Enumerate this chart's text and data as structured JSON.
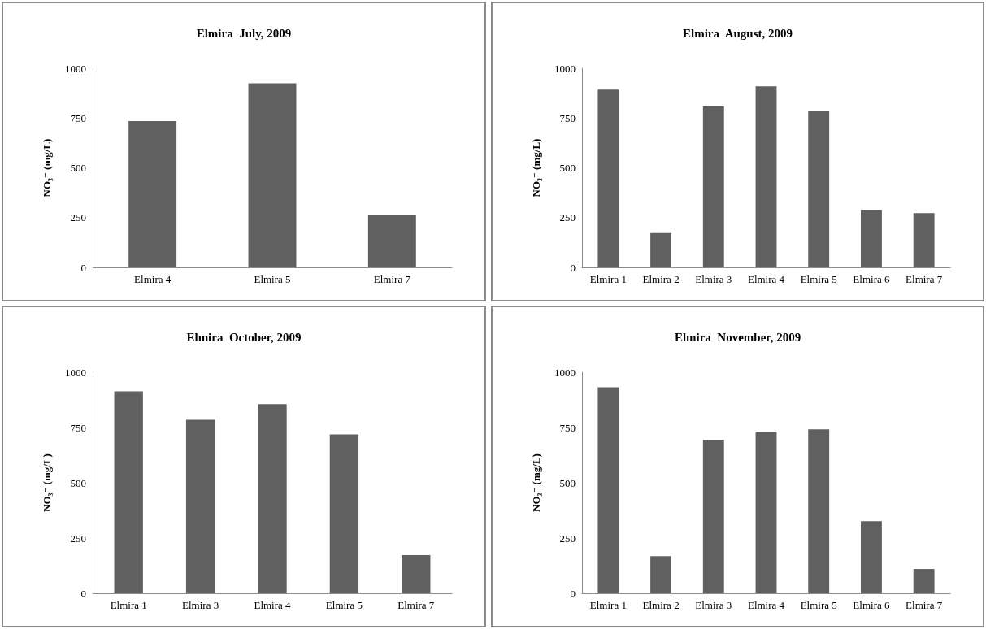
{
  "chart_data": [
    {
      "type": "bar",
      "title": "Elmira  July, 2009",
      "ylabel": "NO₃⁻ (mg/L)",
      "categories": [
        "Elmira 4",
        "Elmira 5",
        "Elmira 7"
      ],
      "values": [
        735,
        924,
        265
      ],
      "color": "#606060",
      "ylim": [
        0,
        1000
      ],
      "yticks": [
        0,
        250,
        500,
        750,
        1000
      ],
      "grid": false
    },
    {
      "type": "bar",
      "title": "Elmira  August, 2009",
      "ylabel": "NO₃⁻ (mg/L)",
      "categories": [
        "Elmira 1",
        "Elmira 2",
        "Elmira 3",
        "Elmira 4",
        "Elmira 5",
        "Elmira 6",
        "Elmira 7"
      ],
      "values": [
        893,
        172,
        809,
        909,
        788,
        288,
        272
      ],
      "color": "#606060",
      "ylim": [
        0,
        1000
      ],
      "yticks": [
        0,
        250,
        500,
        750,
        1000
      ],
      "grid": false
    },
    {
      "type": "bar",
      "title": "Elmira  October, 2009",
      "ylabel": "NO₃⁻ (mg/L)",
      "categories": [
        "Elmira 1",
        "Elmira 3",
        "Elmira 4",
        "Elmira 5",
        "Elmira 7"
      ],
      "values": [
        914,
        785,
        856,
        719,
        173
      ],
      "color": "#606060",
      "ylim": [
        0,
        1000
      ],
      "yticks": [
        0,
        250,
        500,
        750,
        1000
      ],
      "grid": false
    },
    {
      "type": "bar",
      "title": "Elmira  November, 2009",
      "ylabel": "NO₃⁻ (mg/L)",
      "categories": [
        "Elmira 1",
        "Elmira 2",
        "Elmira 3",
        "Elmira 4",
        "Elmira 5",
        "Elmira 6",
        "Elmira 7"
      ],
      "values": [
        932,
        168,
        694,
        732,
        742,
        326,
        110
      ],
      "color": "#606060",
      "ylim": [
        0,
        1000
      ],
      "yticks": [
        0,
        250,
        500,
        750,
        1000
      ],
      "grid": false
    }
  ]
}
